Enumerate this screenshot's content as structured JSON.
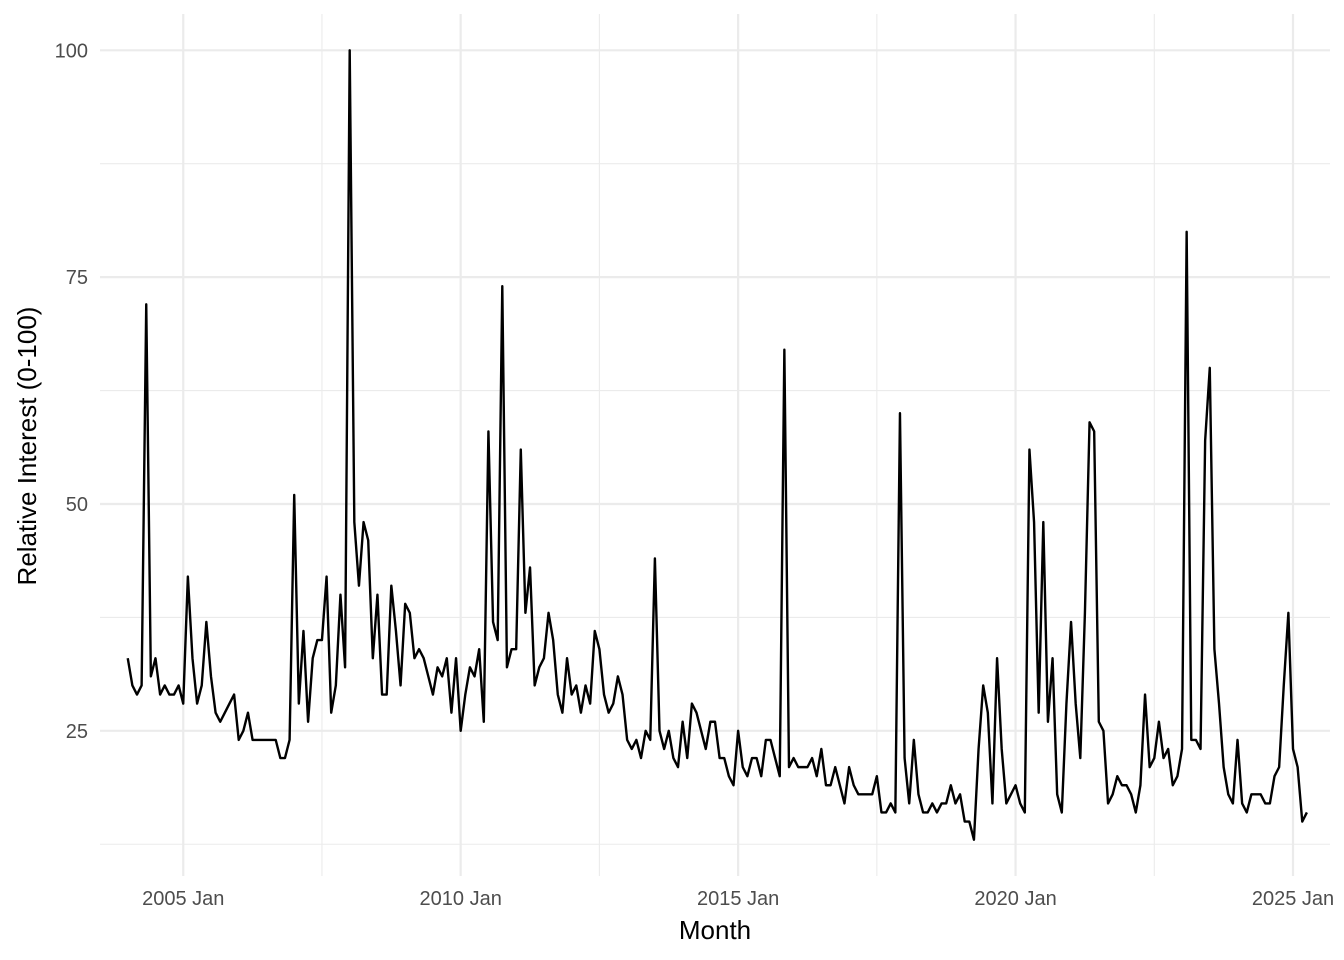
{
  "chart_data": {
    "type": "line",
    "title": "",
    "xlabel": "Month",
    "ylabel": "Relative Interest (0-100)",
    "x_tick_labels": [
      "2005 Jan",
      "2010 Jan",
      "2015 Jan",
      "2020 Jan",
      "2025 Jan"
    ],
    "x_tick_years": [
      2005,
      2010,
      2015,
      2020,
      2025
    ],
    "y_ticks": [
      25,
      50,
      75,
      100
    ],
    "xlim": [
      "2003-07",
      "2025-09"
    ],
    "ylim": [
      9,
      104
    ],
    "grid": true,
    "colors": {
      "line": "#000000",
      "grid": "#ebebeb",
      "text": "#4d4d4d"
    },
    "series": [
      {
        "start": "2004-01",
        "frequency": "monthly",
        "values": [
          33,
          30,
          29,
          30,
          72,
          31,
          33,
          29,
          30,
          29,
          29,
          30,
          28,
          42,
          33,
          28,
          30,
          37,
          31,
          27,
          26,
          27,
          28,
          29,
          24,
          25,
          27,
          24,
          24,
          24,
          24,
          24,
          24,
          22,
          22,
          24,
          51,
          28,
          36,
          26,
          33,
          35,
          35,
          42,
          27,
          30,
          40,
          32,
          100,
          48,
          41,
          48,
          46,
          33,
          40,
          29,
          29,
          41,
          36,
          30,
          39,
          38,
          33,
          34,
          33,
          31,
          29,
          32,
          31,
          33,
          27,
          33,
          25,
          29,
          32,
          31,
          34,
          26,
          58,
          37,
          35,
          74,
          32,
          34,
          34,
          56,
          38,
          43,
          30,
          32,
          33,
          38,
          35,
          29,
          27,
          33,
          29,
          30,
          27,
          30,
          28,
          36,
          34,
          29,
          27,
          28,
          31,
          29,
          24,
          23,
          24,
          22,
          25,
          24,
          44,
          25,
          23,
          25,
          22,
          21,
          26,
          22,
          28,
          27,
          25,
          23,
          26,
          26,
          22,
          22,
          20,
          19,
          25,
          21,
          20,
          22,
          22,
          20,
          24,
          24,
          22,
          20,
          67,
          21,
          22,
          21,
          21,
          21,
          22,
          20,
          23,
          19,
          19,
          21,
          19,
          17,
          21,
          19,
          18,
          18,
          18,
          18,
          20,
          16,
          16,
          17,
          16,
          60,
          22,
          17,
          24,
          18,
          16,
          16,
          17,
          16,
          17,
          17,
          19,
          17,
          18,
          15,
          15,
          13,
          23,
          30,
          27,
          17,
          33,
          23,
          17,
          18,
          19,
          17,
          16,
          56,
          48,
          27,
          48,
          26,
          33,
          18,
          16,
          28,
          37,
          28,
          22,
          38,
          59,
          58,
          26,
          25,
          17,
          18,
          20,
          19,
          19,
          18,
          16,
          19,
          29,
          21,
          22,
          26,
          22,
          23,
          19,
          20,
          23,
          80,
          24,
          24,
          23,
          57,
          65,
          34,
          28,
          21,
          18,
          17,
          24,
          17,
          16,
          18,
          18,
          18,
          17,
          17,
          20,
          21,
          30,
          38,
          23,
          21,
          15,
          16
        ]
      }
    ]
  }
}
